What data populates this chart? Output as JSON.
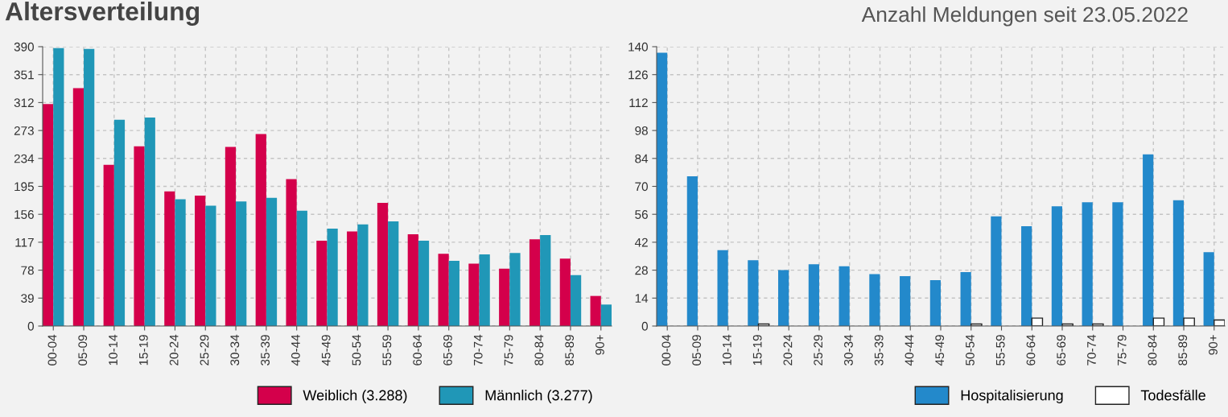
{
  "chart_data": [
    {
      "type": "bar",
      "title": "Altersverteilung",
      "categories": [
        "00-04",
        "05-09",
        "10-14",
        "15-19",
        "20-24",
        "25-29",
        "30-34",
        "35-39",
        "40-44",
        "45-49",
        "50-54",
        "55-59",
        "60-64",
        "65-69",
        "70-74",
        "75-79",
        "80-84",
        "85-89",
        "90+"
      ],
      "series": [
        {
          "name": "Weiblich (3.288)",
          "color": "#d4004b",
          "values": [
            310,
            332,
            225,
            251,
            188,
            182,
            250,
            268,
            205,
            119,
            132,
            172,
            128,
            101,
            87,
            80,
            121,
            94,
            42
          ]
        },
        {
          "name": "Männlich (3.277)",
          "color": "#2097b7",
          "values": [
            388,
            387,
            288,
            291,
            177,
            168,
            174,
            179,
            161,
            136,
            142,
            146,
            119,
            91,
            100,
            102,
            127,
            71,
            30
          ]
        }
      ],
      "ylim": [
        0,
        390
      ],
      "yticks": [
        0,
        39,
        78,
        117,
        156,
        195,
        234,
        273,
        312,
        351,
        390
      ],
      "grid": true,
      "legend": "bottom right"
    },
    {
      "type": "bar",
      "title": "Anzahl Meldungen seit 23.05.2022",
      "categories": [
        "00-04",
        "05-09",
        "10-14",
        "15-19",
        "20-24",
        "25-29",
        "30-34",
        "35-39",
        "40-44",
        "45-49",
        "50-54",
        "55-59",
        "60-64",
        "65-69",
        "70-74",
        "75-79",
        "80-84",
        "85-89",
        "90+"
      ],
      "series": [
        {
          "name": "Hospitalisierung",
          "color": "#2389cb",
          "values": [
            137,
            75,
            38,
            33,
            28,
            31,
            30,
            26,
            25,
            23,
            27,
            55,
            50,
            60,
            62,
            62,
            86,
            63,
            37
          ]
        },
        {
          "name": "Todesfälle",
          "color": "#ffffff",
          "values": [
            0,
            0,
            0,
            1,
            0,
            0,
            0,
            0,
            0,
            0,
            1,
            0,
            4,
            1,
            1,
            0,
            4,
            4,
            3
          ]
        }
      ],
      "ylim": [
        0,
        140
      ],
      "yticks": [
        0,
        14,
        28,
        42,
        56,
        70,
        84,
        98,
        112,
        126,
        140
      ],
      "grid": true,
      "legend": "bottom right"
    }
  ]
}
